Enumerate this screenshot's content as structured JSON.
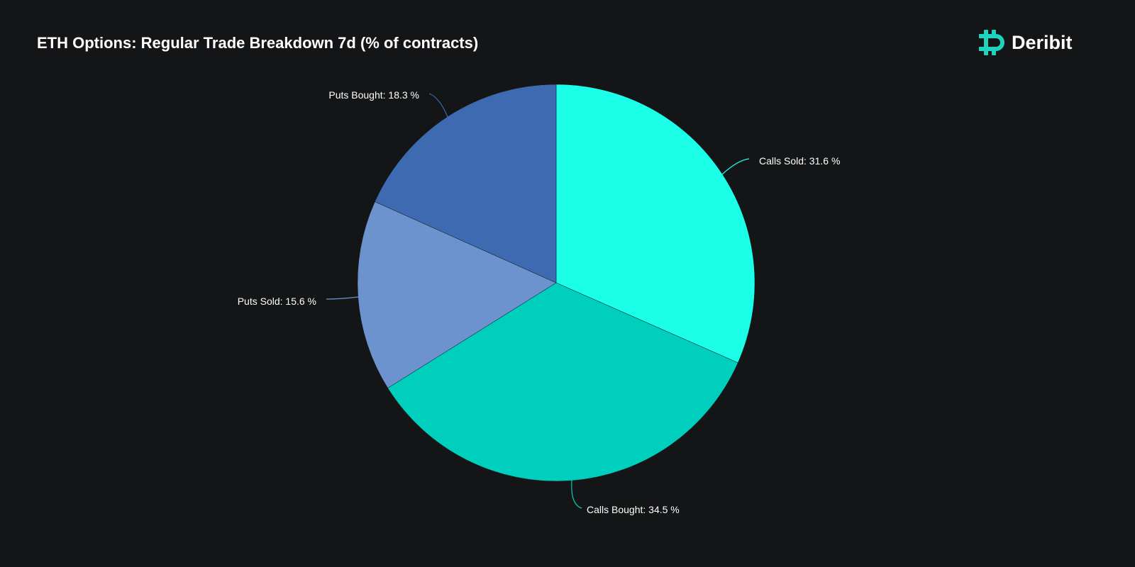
{
  "header": {
    "title": "ETH Options: Regular Trade Breakdown 7d (% of contracts)"
  },
  "brand": {
    "name": "Deribit",
    "color": "#1fd3be"
  },
  "chart_data": {
    "type": "pie",
    "title": "ETH Options: Regular Trade Breakdown 7d (% of contracts)",
    "slices": [
      {
        "label": "Calls Sold",
        "value": 31.6,
        "color": "#1bffe8",
        "display": "Calls Sold: 31.6 %"
      },
      {
        "label": "Calls Bought",
        "value": 34.5,
        "color": "#00cfbe",
        "display": "Calls Bought: 34.5 %"
      },
      {
        "label": "Puts Sold",
        "value": 15.6,
        "color": "#6d93cf",
        "display": "Puts Sold: 15.6 %"
      },
      {
        "label": "Puts Bought",
        "value": 18.3,
        "color": "#3d6ab0",
        "display": "Puts Bought: 18.3 %"
      }
    ],
    "start_angle": "top",
    "direction": "clockwise"
  }
}
